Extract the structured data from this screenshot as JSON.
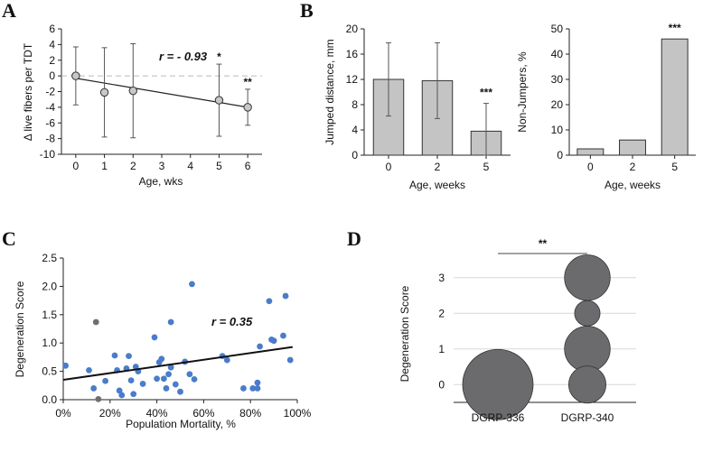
{
  "panels": {
    "A": "A",
    "B": "B",
    "C": "C",
    "D": "D"
  },
  "chart_data": [
    {
      "id": "A",
      "type": "scatter",
      "title": "",
      "xlabel": "Age, wks",
      "ylabel": "Δ live fibers per TDT",
      "ylim": [
        -10,
        6
      ],
      "yticks": [
        6,
        4,
        2,
        0,
        -2,
        -4,
        -6,
        -8,
        -10
      ],
      "xlim": [
        -0.5,
        6.5
      ],
      "xticks": [
        0,
        1,
        2,
        3,
        4,
        5,
        6
      ],
      "points": [
        {
          "x": 0,
          "y": 0,
          "err_low": -3.7,
          "err_high": 3.7,
          "sig": ""
        },
        {
          "x": 1,
          "y": -2.1,
          "err_low": -7.8,
          "err_high": 3.6,
          "sig": ""
        },
        {
          "x": 2,
          "y": -1.9,
          "err_low": -7.9,
          "err_high": 4.1,
          "sig": ""
        },
        {
          "x": 5,
          "y": -3.1,
          "err_low": -7.7,
          "err_high": 1.5,
          "sig": "*"
        },
        {
          "x": 6,
          "y": -4.0,
          "err_low": -6.3,
          "err_high": -1.7,
          "sig": "**"
        }
      ],
      "fit": {
        "x1": 0,
        "y1": -0.3,
        "x2": 6,
        "y2": -4.0
      },
      "annotation": "r = - 0.93",
      "reference_line_y": 0
    },
    {
      "id": "B1",
      "type": "bar",
      "xlabel": "Age, weeks",
      "ylabel": "Jumped distance, mm",
      "ylim": [
        0,
        20
      ],
      "yticks": [
        0,
        4,
        8,
        12,
        16,
        20
      ],
      "categories": [
        "0",
        "2",
        "5"
      ],
      "values": [
        12.0,
        11.8,
        3.8
      ],
      "errors": [
        5.8,
        6.0,
        4.4
      ],
      "sig": [
        "",
        "",
        "***"
      ]
    },
    {
      "id": "B2",
      "type": "bar",
      "xlabel": "Age, weeks",
      "ylabel": "Non-Jumpers, %",
      "ylim": [
        0,
        50
      ],
      "yticks": [
        0,
        10,
        20,
        30,
        40,
        50
      ],
      "categories": [
        "0",
        "2",
        "5"
      ],
      "values": [
        2.5,
        6.0,
        46.0
      ],
      "sig": [
        "",
        "",
        "***"
      ]
    },
    {
      "id": "C",
      "type": "scatter",
      "xlabel": "Population Mortality, %",
      "ylabel": "Degeneration Score",
      "xlim": [
        0,
        100
      ],
      "xticks": [
        0,
        20,
        40,
        60,
        80,
        100
      ],
      "xtick_labels": [
        "0%",
        "20%",
        "40%",
        "60%",
        "80%",
        "100%"
      ],
      "ylim": [
        0,
        2.5
      ],
      "yticks": [
        0.0,
        0.5,
        1.0,
        1.5,
        2.0,
        2.5
      ],
      "ytick_labels": [
        "0.0",
        "0.5",
        "1.0",
        "1.5",
        "2.0",
        "2.5"
      ],
      "annotation": "r = 0.35",
      "fit": {
        "x1": 0,
        "y1": 0.35,
        "x2": 98,
        "y2": 0.93
      },
      "series": [
        {
          "name": "blue",
          "color": "#4a7cc9",
          "points": [
            [
              1,
              0.6
            ],
            [
              11,
              0.52
            ],
            [
              13,
              0.2
            ],
            [
              18,
              0.33
            ],
            [
              22,
              0.78
            ],
            [
              23,
              0.52
            ],
            [
              24,
              0.16
            ],
            [
              25,
              0.08
            ],
            [
              27,
              0.55
            ],
            [
              28,
              0.77
            ],
            [
              29,
              0.34
            ],
            [
              30,
              0.1
            ],
            [
              31,
              0.58
            ],
            [
              32,
              0.5
            ],
            [
              34,
              0.28
            ],
            [
              39,
              1.1
            ],
            [
              40,
              0.37
            ],
            [
              41,
              0.66
            ],
            [
              42,
              0.72
            ],
            [
              43,
              0.37
            ],
            [
              44,
              0.2
            ],
            [
              45,
              0.45
            ],
            [
              46,
              0.57
            ],
            [
              46,
              1.37
            ],
            [
              48,
              0.27
            ],
            [
              50,
              0.14
            ],
            [
              52,
              0.67
            ],
            [
              54,
              0.45
            ],
            [
              55,
              2.04
            ],
            [
              56,
              0.36
            ],
            [
              68,
              0.77
            ],
            [
              70,
              0.7
            ],
            [
              77,
              0.2
            ],
            [
              81,
              0.2
            ],
            [
              83,
              0.3
            ],
            [
              83,
              0.2
            ],
            [
              84,
              0.94
            ],
            [
              88,
              1.74
            ],
            [
              89,
              1.06
            ],
            [
              90,
              1.04
            ],
            [
              94,
              1.13
            ],
            [
              95,
              1.83
            ],
            [
              97,
              0.7
            ]
          ]
        },
        {
          "name": "gray",
          "color": "#6f6f6f",
          "points": [
            [
              14,
              1.37
            ],
            [
              15,
              0.01
            ]
          ]
        }
      ]
    },
    {
      "id": "D",
      "type": "scatter",
      "xlabel": "",
      "ylabel": "Degeneration Score",
      "ylim": [
        -0.5,
        3.5
      ],
      "yticks": [
        0,
        1,
        2,
        3
      ],
      "categories": [
        "DGRP-336",
        "DGRP-340"
      ],
      "bubbles": [
        {
          "category": "DGRP-336",
          "y": 0,
          "size": 1.0
        },
        {
          "category": "DGRP-340",
          "y": 3,
          "size": 0.42
        },
        {
          "category": "DGRP-340",
          "y": 2,
          "size": 0.13
        },
        {
          "category": "DGRP-340",
          "y": 1,
          "size": 0.42
        },
        {
          "category": "DGRP-340",
          "y": 0,
          "size": 0.28
        }
      ],
      "sig": "**",
      "bubble_color": "#6b6b6e"
    }
  ]
}
